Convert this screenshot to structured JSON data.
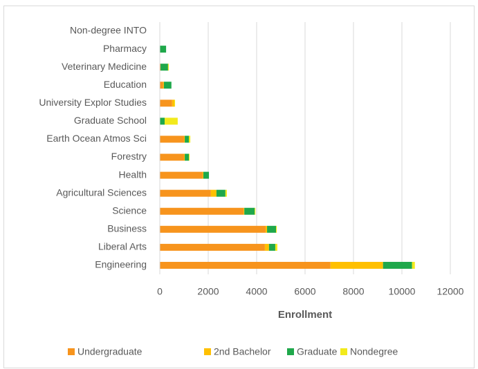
{
  "chart_data": {
    "type": "bar",
    "orientation": "horizontal",
    "stacked": true,
    "xlabel": "Enrollment",
    "categories": [
      "Engineering",
      "Liberal Arts",
      "Business",
      "Science",
      "Agricultural Sciences",
      "Health",
      "Forestry",
      "Earth Ocean Atmos Sci",
      "Graduate School",
      "University Explor Studies",
      "Education",
      "Veterinary Medicine",
      "Pharmacy",
      "Non-degree INTO"
    ],
    "series": [
      {
        "name": "Undergraduate",
        "color": "#f7941d",
        "values": [
          7050,
          4340,
          4370,
          3460,
          2110,
          1770,
          1000,
          1000,
          0,
          510,
          140,
          30,
          0,
          0
        ]
      },
      {
        "name": "2nd Bachelor",
        "color": "#ffc000",
        "values": [
          2170,
          170,
          60,
          30,
          230,
          30,
          30,
          30,
          0,
          90,
          30,
          0,
          0,
          0
        ]
      },
      {
        "name": "Graduate",
        "color": "#1fa84b",
        "values": [
          1200,
          260,
          370,
          430,
          370,
          230,
          170,
          170,
          200,
          0,
          310,
          310,
          260,
          0
        ]
      },
      {
        "name": "Nondegree",
        "color": "#f2ea1c",
        "values": [
          115,
          85,
          30,
          30,
          60,
          0,
          30,
          60,
          540,
          30,
          0,
          30,
          0,
          10
        ]
      }
    ],
    "xlim": [
      0,
      12000
    ],
    "xticks": [
      0,
      2000,
      4000,
      6000,
      8000,
      10000,
      12000
    ],
    "grid": true,
    "legend": "bottom"
  }
}
